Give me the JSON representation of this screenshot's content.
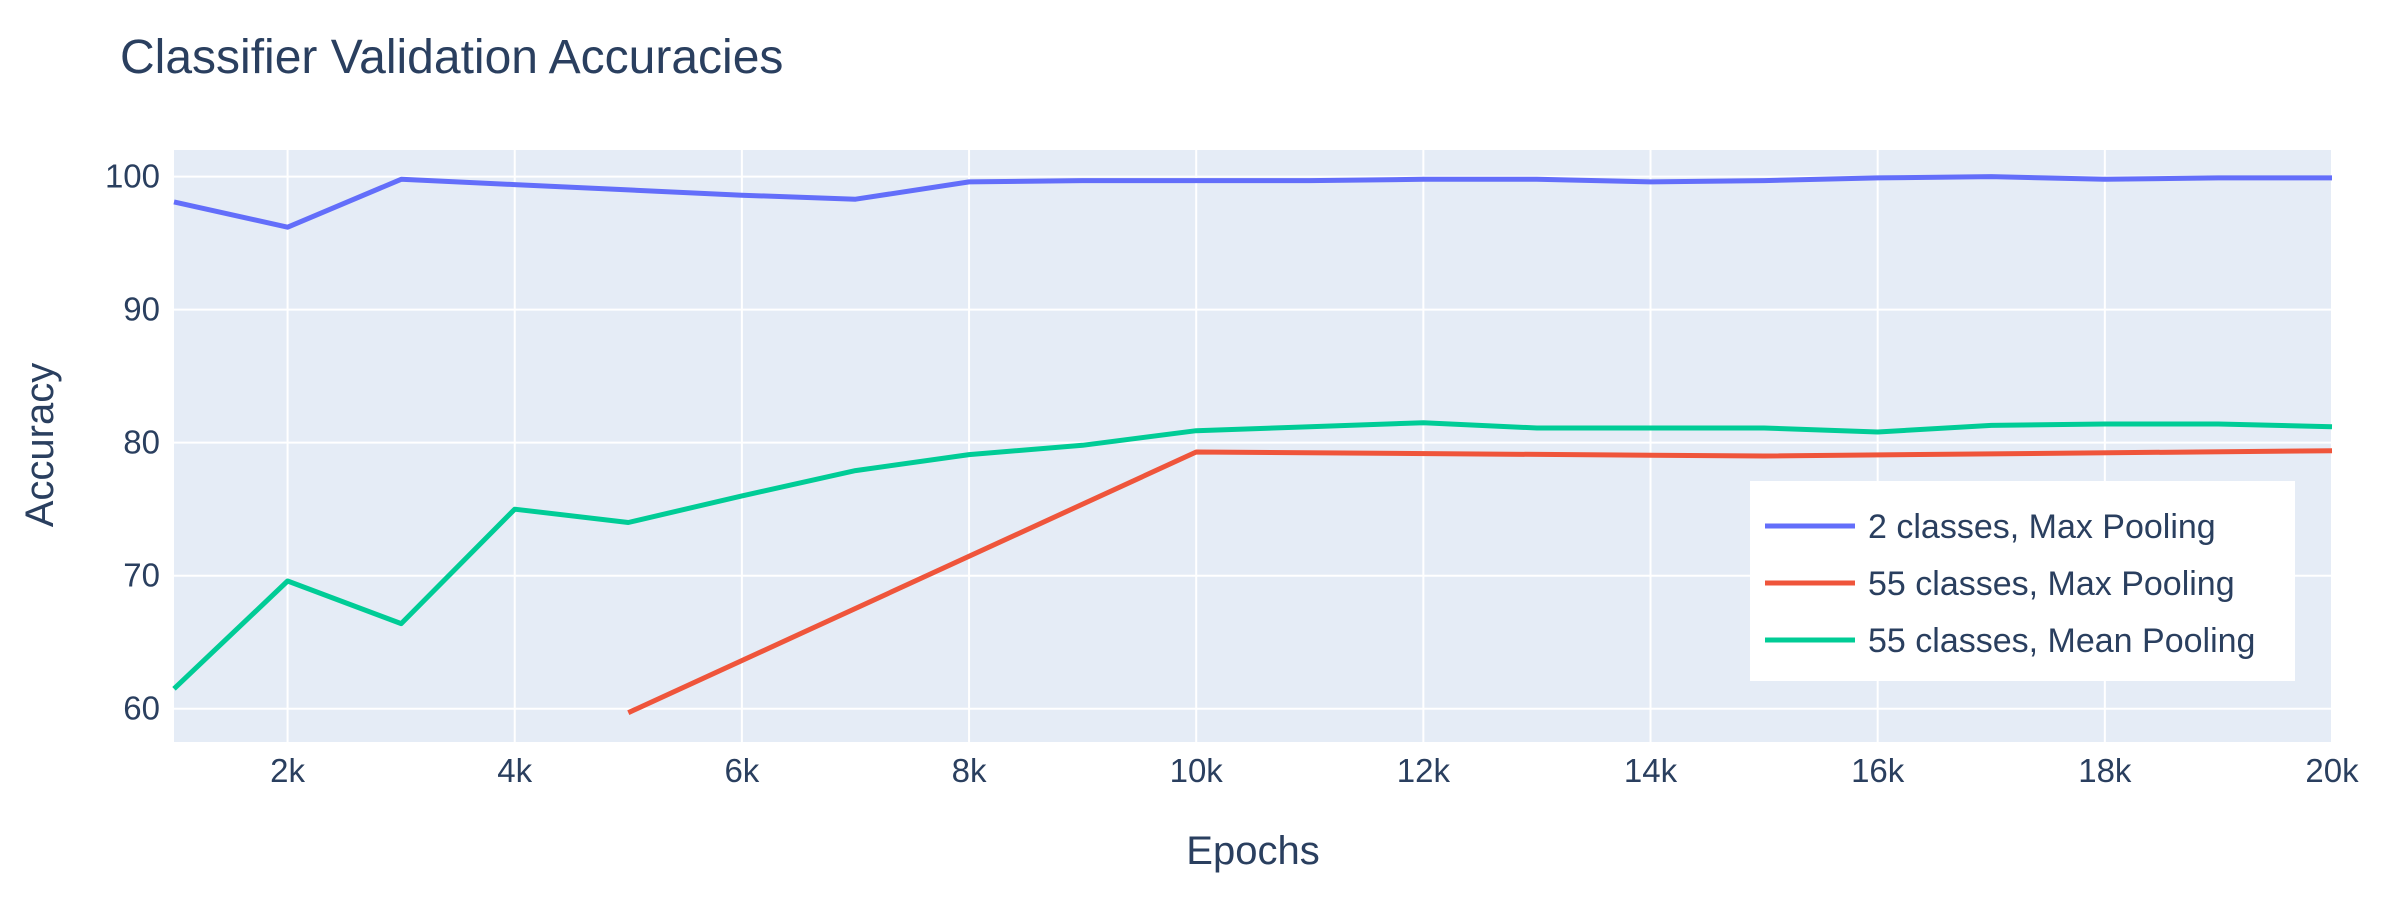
{
  "chart_data": {
    "type": "line",
    "title": "Classifier Validation Accuracies",
    "xlabel": "Epochs",
    "ylabel": "Accuracy",
    "xlim": [
      1000,
      20000
    ],
    "ylim": [
      57.5,
      102
    ],
    "xticks": [
      2000,
      4000,
      6000,
      8000,
      10000,
      12000,
      14000,
      16000,
      18000,
      20000
    ],
    "xtick_labels": [
      "2k",
      "4k",
      "6k",
      "8k",
      "10k",
      "12k",
      "14k",
      "16k",
      "18k",
      "20k"
    ],
    "yticks": [
      60,
      70,
      80,
      90,
      100
    ],
    "ytick_labels": [
      "60",
      "70",
      "80",
      "90",
      "100"
    ],
    "grid": true,
    "legend_position": "right",
    "series": [
      {
        "name": "2 classes, Max Pooling",
        "color": "#636efa",
        "x": [
          1000,
          2000,
          3000,
          4000,
          5000,
          6000,
          7000,
          8000,
          9000,
          10000,
          11000,
          12000,
          13000,
          14000,
          15000,
          16000,
          17000,
          18000,
          19000,
          20000
        ],
        "y": [
          98.1,
          96.2,
          99.8,
          99.4,
          99.0,
          98.6,
          98.3,
          99.6,
          99.7,
          99.7,
          99.7,
          99.8,
          99.8,
          99.6,
          99.7,
          99.9,
          100.0,
          99.8,
          99.9,
          99.9
        ]
      },
      {
        "name": "55 classes, Max Pooling",
        "color": "#ef553b",
        "x": [
          5000,
          10000,
          15000,
          20000
        ],
        "y": [
          59.7,
          79.3,
          79.0,
          79.4
        ]
      },
      {
        "name": "55 classes, Mean Pooling",
        "color": "#00cc96",
        "x": [
          1000,
          2000,
          3000,
          4000,
          5000,
          6000,
          7000,
          8000,
          9000,
          10000,
          11000,
          12000,
          13000,
          14000,
          15000,
          16000,
          17000,
          18000,
          19000,
          20000
        ],
        "y": [
          61.5,
          69.6,
          66.4,
          75.0,
          74.0,
          76.0,
          77.9,
          79.1,
          79.8,
          80.9,
          81.2,
          81.5,
          81.1,
          81.1,
          81.1,
          80.8,
          81.3,
          81.4,
          81.4,
          81.2
        ]
      }
    ]
  }
}
